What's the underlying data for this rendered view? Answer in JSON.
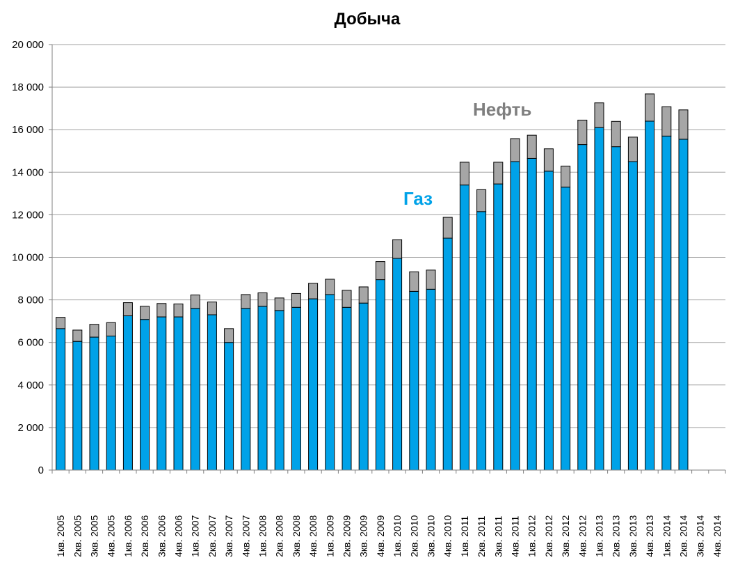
{
  "chart_data": {
    "type": "bar",
    "stacked": true,
    "title": "Добыча",
    "xlabel": "",
    "ylabel": "",
    "ylim": [
      0,
      20000
    ],
    "yticks": [
      0,
      2000,
      4000,
      6000,
      8000,
      10000,
      12000,
      14000,
      16000,
      18000,
      20000
    ],
    "ytick_labels": [
      "0",
      "2 000",
      "4 000",
      "6 000",
      "8 000",
      "10 000",
      "12 000",
      "14 000",
      "16 000",
      "18 000",
      "20 000"
    ],
    "grid": true,
    "categories": [
      "1кв. 2005",
      "2кв. 2005",
      "3кв. 2005",
      "4кв. 2005",
      "1кв. 2006",
      "2кв. 2006",
      "3кв. 2006",
      "4кв. 2006",
      "1кв. 2007",
      "2кв. 2007",
      "3кв. 2007",
      "4кв. 2007",
      "1кв. 2008",
      "2кв. 2008",
      "3кв. 2008",
      "4кв. 2008",
      "1кв. 2009",
      "2кв. 2009",
      "3кв. 2009",
      "4кв. 2009",
      "1кв. 2010",
      "2кв. 2010",
      "3кв. 2010",
      "4кв. 2010",
      "1кв. 2011",
      "2кв. 2011",
      "3кв. 2011",
      "4кв. 2011",
      "1кв. 2012",
      "2кв. 2012",
      "3кв. 2012",
      "4кв. 2012",
      "1кв. 2013",
      "2кв. 2013",
      "3кв. 2013",
      "4кв. 2013",
      "1кв. 2014",
      "2кв. 2014",
      "3кв. 2014",
      "4кв. 2014"
    ],
    "series": [
      {
        "name": "Газ",
        "color": "#00A2E8",
        "values": [
          6650,
          6050,
          6250,
          6300,
          7250,
          7080,
          7200,
          7200,
          7600,
          7300,
          6000,
          7600,
          7700,
          7500,
          7650,
          8050,
          8250,
          7650,
          7850,
          8950,
          9950,
          8400,
          8500,
          10900,
          13400,
          12150,
          13450,
          14500,
          14650,
          14050,
          13300,
          15300,
          16100,
          15200,
          14500,
          16400,
          15700,
          15550,
          null,
          null
        ]
      },
      {
        "name": "Нефть",
        "color": "#A6A6A6",
        "values": [
          530,
          530,
          600,
          630,
          620,
          620,
          630,
          610,
          630,
          600,
          650,
          650,
          630,
          590,
          650,
          730,
          720,
          800,
          760,
          850,
          880,
          920,
          900,
          980,
          1070,
          1030,
          1020,
          1080,
          1090,
          1050,
          990,
          1150,
          1160,
          1190,
          1150,
          1280,
          1380,
          1380,
          null,
          null
        ]
      }
    ],
    "annotations": [
      {
        "text": "Нефть",
        "series": "Нефть",
        "color": "#7F7F7F"
      },
      {
        "text": "Газ",
        "series": "Газ",
        "color": "#00A2E8"
      }
    ]
  }
}
